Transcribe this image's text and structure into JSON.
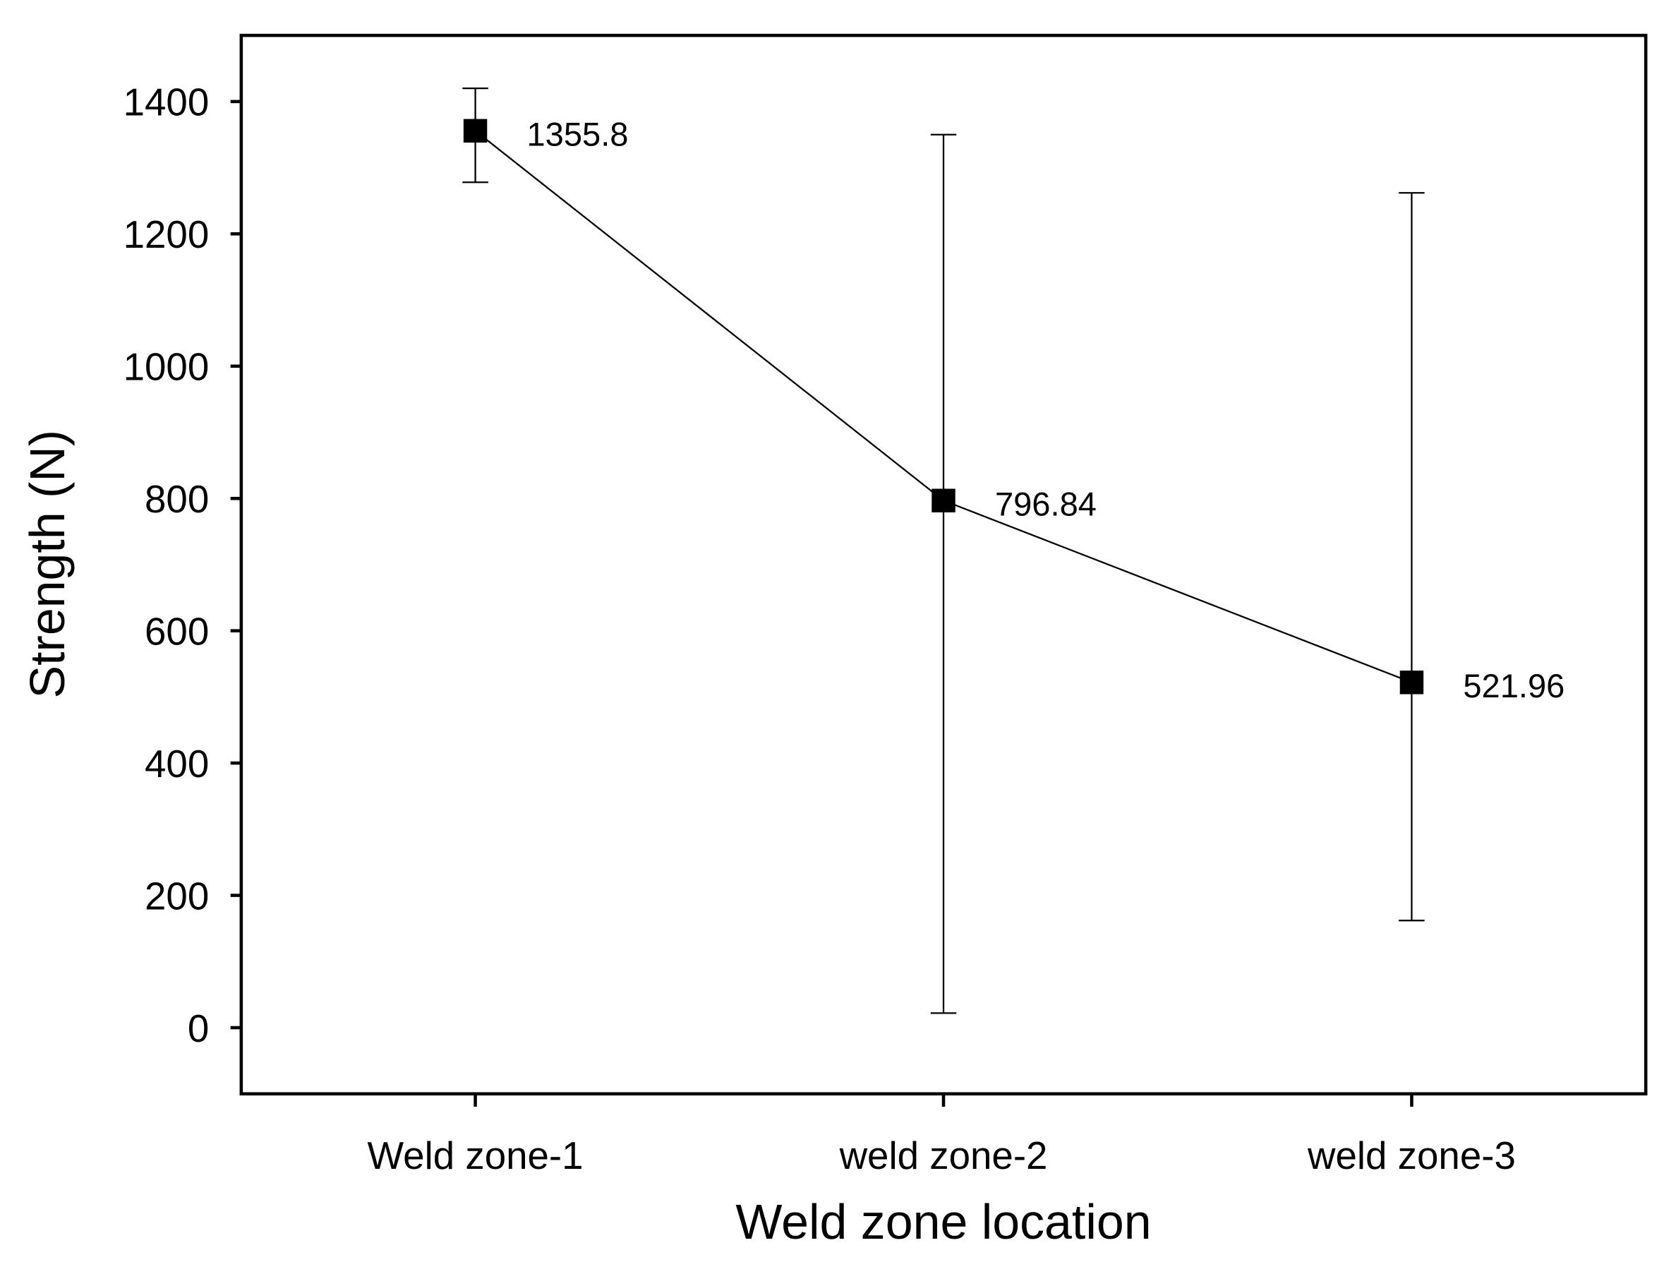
{
  "chart_data": {
    "type": "line",
    "x_label": "Weld zone location",
    "y_label": "Strength (N)",
    "categories": [
      "Weld zone-1",
      "weld zone-2",
      "weld zone-3"
    ],
    "series": [
      {
        "color": "#000000",
        "values": [
          1355.8,
          796.84,
          521.96
        ],
        "lower": [
          1278,
          22,
          162
        ],
        "upper": [
          1420,
          1350,
          1262
        ]
      }
    ],
    "ylim": [
      -100,
      1500
    ],
    "yticks": [
      0,
      200,
      400,
      600,
      800,
      1000,
      1200,
      1400
    ]
  }
}
